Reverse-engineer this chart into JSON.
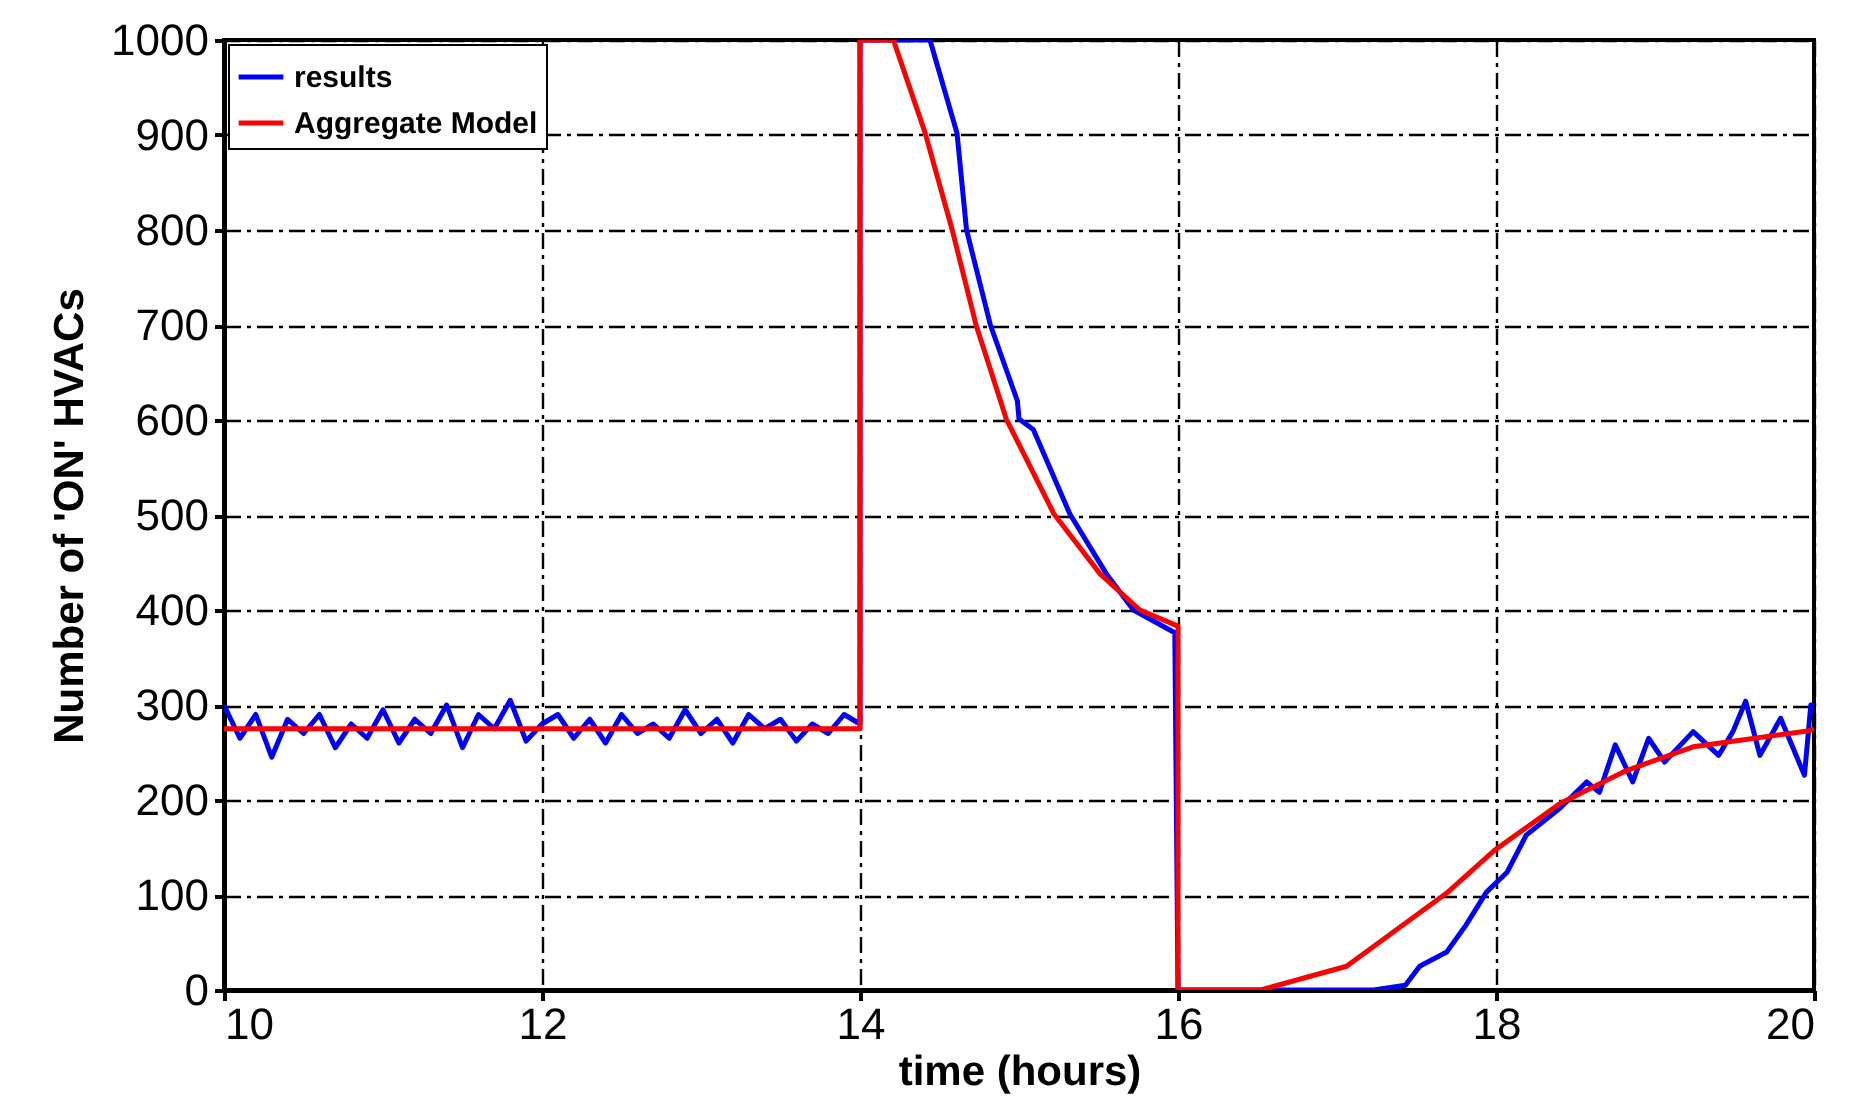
{
  "chart_data": {
    "type": "line",
    "xlabel": "time (hours)",
    "ylabel": "Number of 'ON' HVACs",
    "xlim": [
      10,
      20
    ],
    "ylim": [
      0,
      1000
    ],
    "xticks": [
      10,
      12,
      14,
      16,
      18,
      20
    ],
    "yticks": [
      0,
      100,
      200,
      300,
      400,
      500,
      600,
      700,
      800,
      900,
      1000
    ],
    "grid": true,
    "legend": "top left",
    "series": [
      {
        "name": "results",
        "color": "#0000ff",
        "x": [
          10.0,
          10.1,
          10.2,
          10.3,
          10.4,
          10.5,
          10.6,
          10.7,
          10.8,
          10.9,
          11.0,
          11.1,
          11.2,
          11.3,
          11.4,
          11.5,
          11.6,
          11.7,
          11.8,
          11.9,
          12.0,
          12.1,
          12.2,
          12.3,
          12.4,
          12.5,
          12.6,
          12.7,
          12.8,
          12.9,
          13.0,
          13.1,
          13.2,
          13.3,
          13.4,
          13.5,
          13.6,
          13.7,
          13.8,
          13.9,
          14.0,
          14.0,
          14.44,
          14.61,
          14.67,
          14.82,
          14.99,
          15.0,
          15.09,
          15.32,
          15.55,
          15.72,
          15.98,
          16.0,
          17.23,
          17.43,
          17.52,
          17.69,
          17.81,
          17.94,
          18.07,
          18.19,
          18.4,
          18.57,
          18.65,
          18.75,
          18.86,
          18.96,
          19.06,
          19.24,
          19.4,
          19.49,
          19.57,
          19.66,
          19.79,
          19.94,
          19.98,
          20.0
        ],
        "values": [
          300,
          265,
          290,
          245,
          285,
          270,
          290,
          255,
          280,
          265,
          295,
          260,
          285,
          270,
          300,
          255,
          290,
          275,
          305,
          262,
          280,
          290,
          265,
          285,
          260,
          290,
          270,
          280,
          265,
          295,
          270,
          285,
          260,
          290,
          275,
          285,
          262,
          280,
          270,
          290,
          280,
          1000,
          1000,
          902,
          800,
          700,
          620,
          601,
          590,
          501,
          438,
          400,
          376,
          0,
          0,
          5,
          25,
          40,
          68,
          103,
          124,
          163,
          191,
          219,
          208,
          258,
          219,
          265,
          240,
          272,
          247,
          272,
          304,
          247,
          286,
          226,
          300,
          300
        ]
      },
      {
        "name": "Aggregate Model",
        "color": "#ff0000",
        "x": [
          10,
          14,
          14,
          14.21,
          14.41,
          14.58,
          14.73,
          14.92,
          15.22,
          15.51,
          15.76,
          16,
          16,
          16.52,
          17.06,
          17.69,
          17.99,
          18.4,
          18.82,
          19.24,
          19.97,
          20
        ],
        "values": [
          275,
          275,
          1000,
          1000,
          902,
          800,
          700,
          601,
          501,
          438,
          400,
          383,
          0,
          0,
          25,
          102,
          147,
          196,
          231,
          256,
          273,
          275
        ]
      }
    ]
  }
}
